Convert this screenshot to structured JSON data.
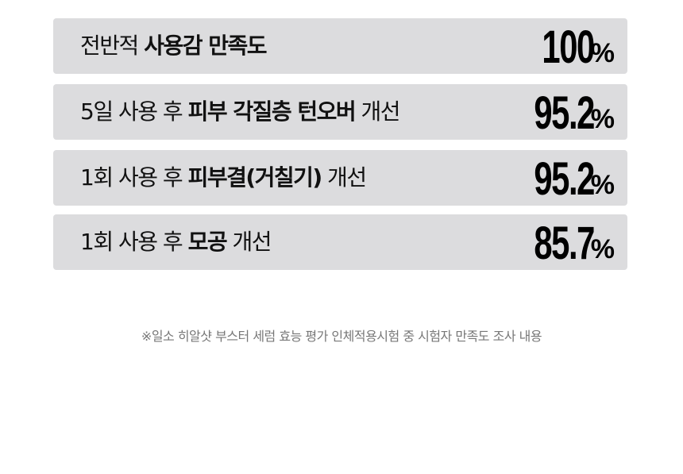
{
  "rows": [
    {
      "label_pre": "전반적 ",
      "label_bold": "사용감 만족도",
      "label_post": "",
      "value": "100",
      "unit": "%"
    },
    {
      "label_pre": "5일 사용 후 ",
      "label_bold": "피부 각질층 턴오버",
      "label_post": " 개선",
      "value": "95.2",
      "unit": "%"
    },
    {
      "label_pre": "1회 사용 후 ",
      "label_bold": "피부결(거칠기)",
      "label_post": " 개선",
      "value": "95.2",
      "unit": "%"
    },
    {
      "label_pre": "1회 사용 후 ",
      "label_bold": "모공",
      "label_post": " 개선",
      "value": "85.7",
      "unit": "%"
    }
  ],
  "note": "※일소 히알샷 부스터 세럼 효능 평가 인체적용시험 중 시험자 만족도 조사 내용",
  "colors": {
    "row_bg": "#dcdcde",
    "text": "#111111",
    "note": "#777777"
  }
}
